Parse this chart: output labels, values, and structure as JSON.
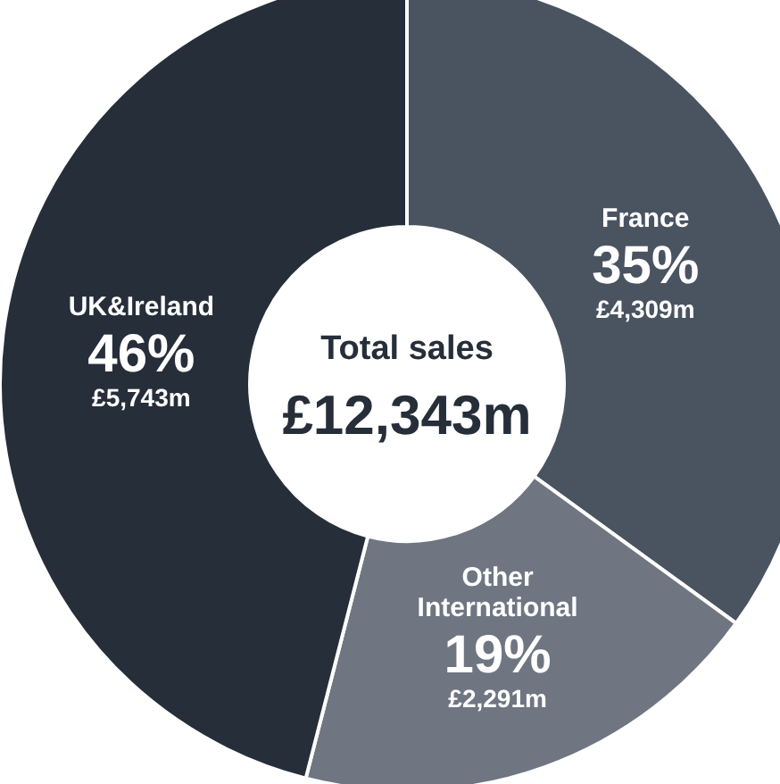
{
  "chart_data": {
    "type": "donut",
    "title": "Total sales",
    "subtitle": "£12,343m",
    "categories": [
      "France",
      "Other International",
      "UK&Ireland"
    ],
    "values": [
      35,
      19,
      46
    ],
    "colors": [
      "#4a5461",
      "#6f7682",
      "#262e3a"
    ],
    "value_labels": [
      "35%",
      "19%",
      "46%"
    ],
    "annotations": [
      "£4,309m",
      "£2,291m",
      "£5,743m"
    ],
    "legend": false
  }
}
